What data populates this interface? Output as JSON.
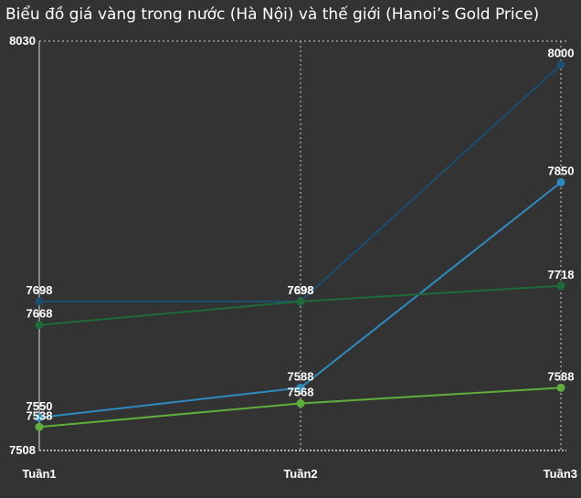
{
  "chart_data": {
    "type": "line",
    "title": "Biểu đồ giá vàng trong nước (Hà Nội) và thế giới (Hanoi’s Gold Price)",
    "categories": [
      "Tuần1",
      "Tuần2",
      "Tuần3"
    ],
    "ylim": [
      7508,
      8030
    ],
    "y_tick_labels": [
      "8030",
      "7508"
    ],
    "grid": "vertical dotted",
    "legend": "none",
    "series": [
      {
        "color": "#1b4f72",
        "values": [
          7698,
          7698,
          8000
        ],
        "labels": [
          "7698",
          "7698",
          "8000"
        ]
      },
      {
        "color": "#2e8bc0",
        "values": [
          7550,
          7588,
          7850
        ],
        "labels": [
          "7550",
          "7588",
          "7850"
        ]
      },
      {
        "color": "#1e6b3a",
        "values": [
          7668,
          7698,
          7718
        ],
        "labels": [
          "7668",
          "7698",
          "7718"
        ]
      },
      {
        "color": "#5fae3c",
        "values": [
          7538,
          7568,
          7588
        ],
        "labels": [
          "7538",
          "7568",
          "7588"
        ]
      }
    ]
  }
}
